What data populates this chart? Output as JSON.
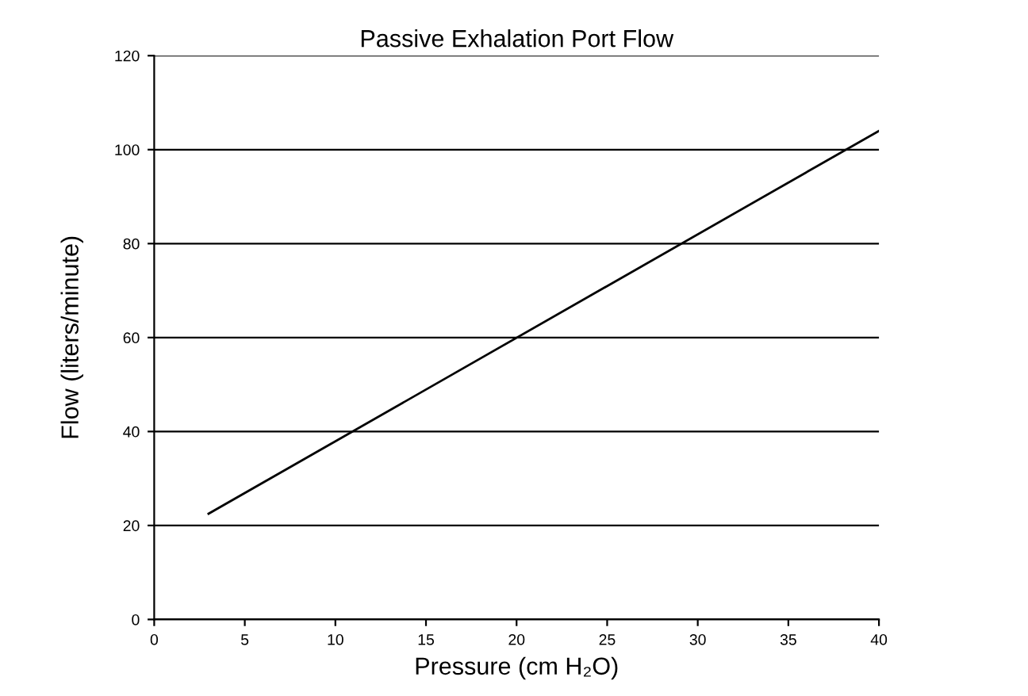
{
  "chart_data": {
    "type": "line",
    "title": "Passive Exhalation Port Flow",
    "xlabel": "Pressure (cm H₂O)",
    "ylabel": "Flow (liters/minute)",
    "x": [
      3,
      40
    ],
    "series": [
      {
        "color": "#000000",
        "values": [
          22.5,
          104
        ]
      }
    ],
    "xlim": [
      0,
      40
    ],
    "xticks": [
      0,
      5,
      10,
      15,
      20,
      25,
      30,
      35,
      40
    ],
    "ylim": [
      0,
      120
    ],
    "yticks": [
      0,
      20,
      40,
      60,
      80,
      100,
      120
    ],
    "grid": "y",
    "marker": "none",
    "line_style": "solid"
  }
}
